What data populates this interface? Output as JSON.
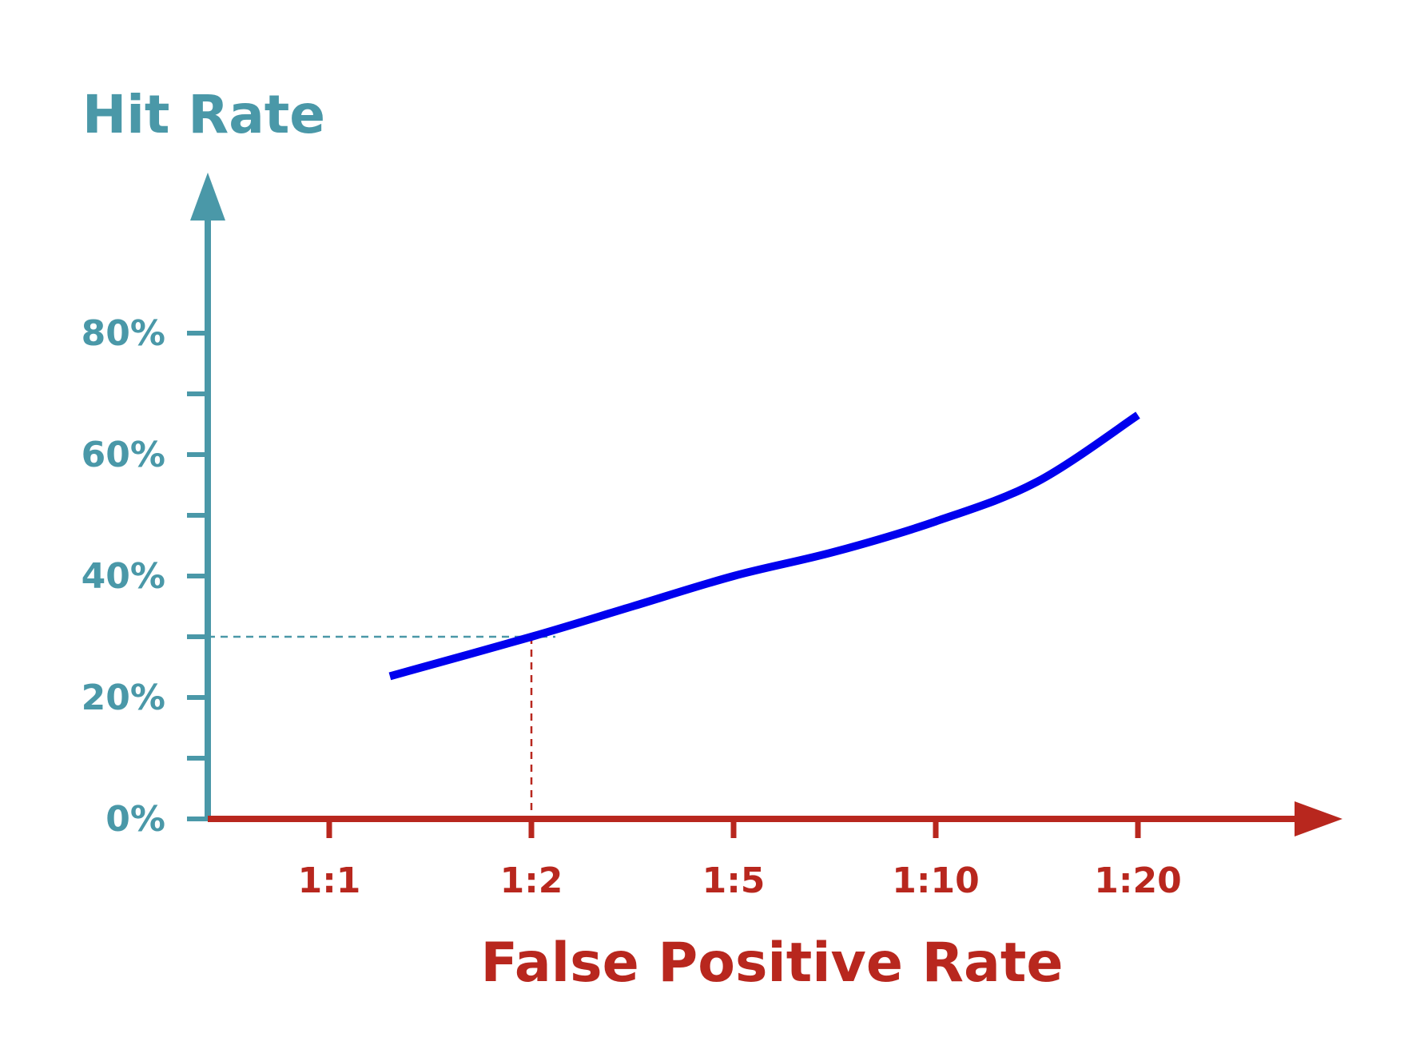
{
  "chart_data": {
    "type": "line",
    "ylabel": "Hit Rate",
    "xlabel": "False Positive Rate",
    "categories": [
      "1:1",
      "1:2",
      "1:5",
      "1:10",
      "1:20"
    ],
    "y_ticks": [
      "0%",
      "20%",
      "40%",
      "60%",
      "80%"
    ],
    "y_tick_values": [
      0,
      20,
      40,
      60,
      80
    ],
    "ylim": [
      0,
      100
    ],
    "grid": false,
    "series": [
      {
        "points": [
          [
            0.3,
            23.5
          ],
          [
            1.0,
            30.0
          ],
          [
            1.5,
            35.0
          ],
          [
            2.0,
            40.0
          ],
          [
            2.5,
            44.0
          ],
          [
            3.0,
            49.0
          ],
          [
            3.5,
            55.5
          ],
          [
            4.0,
            66.5
          ]
        ]
      }
    ],
    "reference_point": {
      "x": 1.0,
      "y": 30.0
    },
    "colors": {
      "y_axis": "#4a98a8",
      "x_axis": "#b8271e",
      "line": "#0000ee",
      "y_guide": "#4a98a8",
      "x_guide": "#b8271e"
    }
  }
}
